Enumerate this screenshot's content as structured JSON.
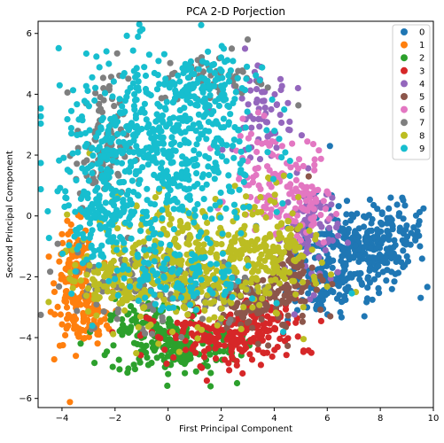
{
  "chart_data": {
    "type": "scatter",
    "title": "PCA 2-D Porjection",
    "xlabel": "First Principal Component",
    "ylabel": "Second Principal Component",
    "xlim": [
      -4.9,
      10.0
    ],
    "ylim": [
      -6.3,
      6.4
    ],
    "xticks": [
      -4,
      -2,
      0,
      2,
      4,
      6,
      8,
      10
    ],
    "yticks": [
      -6,
      -4,
      -2,
      0,
      2,
      4,
      6
    ],
    "grid": false,
    "legend_position": "top-right",
    "series": [
      {
        "name": "0",
        "color": "#1f77b4",
        "clusters": [
          [
            6.8,
            -1.2,
            1.0,
            0.75,
            230
          ],
          [
            8.2,
            -0.8,
            0.7,
            0.6,
            90
          ],
          [
            5.9,
            -2.5,
            0.7,
            0.5,
            60
          ],
          [
            9.0,
            -0.5,
            0.3,
            0.4,
            15
          ]
        ],
        "points": [
          [
            8.7,
            0.0
          ],
          [
            6.1,
            2.3
          ],
          [
            9.4,
            -0.5
          ],
          [
            7.4,
            -3.3
          ],
          [
            5.6,
            0.8
          ]
        ]
      },
      {
        "name": "1",
        "color": "#ff7f0e",
        "clusters": [
          [
            -3.5,
            -2.3,
            0.35,
            0.95,
            150
          ],
          [
            -2.9,
            -3.3,
            0.4,
            0.4,
            50
          ]
        ],
        "points": [
          [
            -4.1,
            -1.5
          ],
          [
            -3.9,
            -2.8
          ],
          [
            -2.6,
            -3.9
          ],
          [
            -4.0,
            -0.6
          ]
        ]
      },
      {
        "name": "2",
        "color": "#2ca02c",
        "clusters": [
          [
            0.2,
            -4.3,
            1.2,
            0.45,
            180
          ],
          [
            -1.0,
            -3.4,
            0.6,
            0.35,
            60
          ]
        ],
        "points": [
          [
            1.6,
            -5.6
          ],
          [
            -1.6,
            -3.7
          ],
          [
            2.6,
            -5.5
          ],
          [
            0.0,
            -5.2
          ]
        ]
      },
      {
        "name": "3",
        "color": "#d62728",
        "clusters": [
          [
            2.1,
            -4.0,
            1.4,
            0.45,
            170
          ],
          [
            3.5,
            -3.5,
            0.8,
            0.4,
            60
          ]
        ],
        "points": [
          [
            5.4,
            -4.5
          ],
          [
            3.5,
            -4.9
          ],
          [
            4.8,
            -2.7
          ],
          [
            4.2,
            -3.2
          ]
        ]
      },
      {
        "name": "4",
        "color": "#9467bd",
        "clusters": [
          [
            3.6,
            3.4,
            0.55,
            0.7,
            60
          ],
          [
            5.4,
            -0.6,
            0.5,
            0.9,
            80
          ]
        ],
        "points": [
          [
            4.9,
            4.2
          ],
          [
            3.5,
            4.9
          ],
          [
            3.9,
            2.7
          ],
          [
            2.9,
            5.5
          ]
        ]
      },
      {
        "name": "5",
        "color": "#8c564b",
        "clusters": [
          [
            3.4,
            -2.9,
            1.0,
            0.55,
            110
          ],
          [
            4.7,
            -2.0,
            0.5,
            0.6,
            50
          ]
        ],
        "points": [
          [
            5.3,
            1.3
          ],
          [
            5.0,
            -2.8
          ],
          [
            2.6,
            -3.2
          ]
        ]
      },
      {
        "name": "6",
        "color": "#e377c2",
        "clusters": [
          [
            4.0,
            1.2,
            0.8,
            0.8,
            110
          ],
          [
            5.2,
            0.2,
            0.4,
            0.5,
            40
          ]
        ],
        "points": [
          [
            3.4,
            3.4
          ],
          [
            2.8,
            1.9
          ],
          [
            5.0,
            -0.8
          ]
        ]
      },
      {
        "name": "7",
        "color": "#7f7f7f",
        "clusters": [
          [
            -2.5,
            2.3,
            0.5,
            1.1,
            90
          ],
          [
            0.0,
            -2.2,
            1.7,
            0.7,
            180
          ],
          [
            1.8,
            4.5,
            1.1,
            0.4,
            50
          ]
        ],
        "points": [
          [
            3.0,
            5.8
          ],
          [
            -3.3,
            0.2
          ],
          [
            -3.4,
            -1.2
          ],
          [
            2.4,
            5.5
          ]
        ]
      },
      {
        "name": "8",
        "color": "#bcbd22",
        "clusters": [
          [
            0.8,
            -1.5,
            1.9,
            1.0,
            420
          ],
          [
            -2.2,
            -2.2,
            0.8,
            0.5,
            80
          ],
          [
            3.9,
            -0.7,
            0.7,
            0.9,
            100
          ]
        ],
        "points": [
          [
            5.1,
            -3.0
          ],
          [
            5.5,
            -2.0
          ],
          [
            -0.9,
            -3.0
          ],
          [
            4.8,
            -1.0
          ]
        ]
      },
      {
        "name": "9",
        "color": "#17becf",
        "clusters": [
          [
            -0.3,
            2.2,
            1.9,
            1.5,
            550
          ],
          [
            -2.3,
            0.3,
            0.8,
            0.9,
            140
          ],
          [
            1.2,
            4.2,
            1.0,
            0.5,
            100
          ],
          [
            0.5,
            -2.0,
            1.5,
            0.6,
            120
          ]
        ],
        "points": [
          [
            2.1,
            5.5
          ],
          [
            1.5,
            5.4
          ],
          [
            -3.9,
            0.3
          ],
          [
            1.1,
            -1.7
          ]
        ]
      }
    ]
  }
}
